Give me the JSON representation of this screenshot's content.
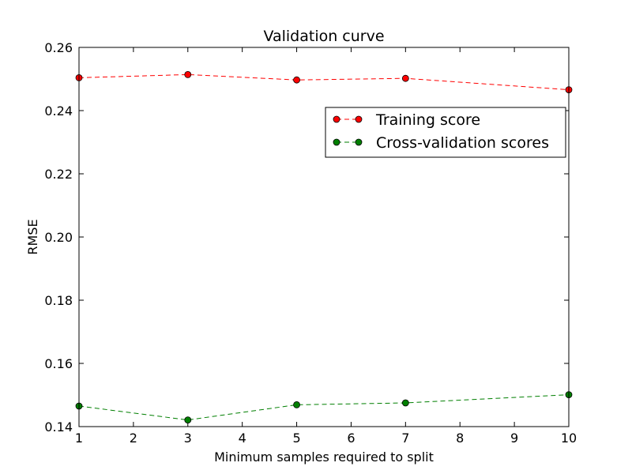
{
  "chart_data": {
    "type": "line",
    "title": "Validation curve",
    "xlabel": "Minimum samples required to split",
    "ylabel": "RMSE",
    "xlim": [
      1,
      10
    ],
    "ylim": [
      0.14,
      0.26
    ],
    "xticks": [
      1,
      2,
      3,
      4,
      5,
      6,
      7,
      8,
      9,
      10
    ],
    "yticks": [
      0.14,
      0.16,
      0.18,
      0.2,
      0.22,
      0.24,
      0.26
    ],
    "ytick_labels": [
      "0.14",
      "0.16",
      "0.18",
      "0.20",
      "0.22",
      "0.24",
      "0.26"
    ],
    "grid": false,
    "legend_position": "upper-right",
    "x": [
      1,
      3,
      5,
      7,
      10
    ],
    "series": [
      {
        "name": "Training score",
        "color": "#ff0000",
        "marker": "circle",
        "line_style": "dashed",
        "values": [
          0.2504,
          0.2514,
          0.2497,
          0.2502,
          0.2466
        ]
      },
      {
        "name": "Cross-validation scores",
        "color": "#007f00",
        "marker": "circle",
        "line_style": "dashed",
        "values": [
          0.1465,
          0.1421,
          0.1469,
          0.1475,
          0.1501
        ]
      }
    ]
  }
}
